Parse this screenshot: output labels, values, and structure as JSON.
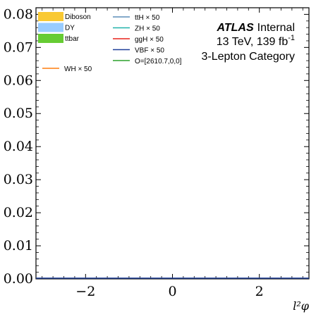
{
  "chart_data": {
    "type": "line",
    "xlabel": "l²φ",
    "ylabel": "",
    "xlim": [
      -3.1416,
      3.1416
    ],
    "ylim": [
      0.0,
      0.082
    ],
    "x_ticks": [
      -2,
      0,
      2
    ],
    "x_tick_labels": [
      "−2",
      "0",
      "2"
    ],
    "y_ticks": [
      0.0,
      0.01,
      0.02,
      0.03,
      0.04,
      0.05,
      0.06,
      0.07,
      0.08
    ],
    "y_tick_labels": [
      "0.00",
      "0.01",
      "0.02",
      "0.03",
      "0.04",
      "0.05",
      "0.06",
      "0.07",
      "0.08"
    ],
    "legend_position": "top-left",
    "stacked_backgrounds": [
      {
        "name": "Diboson",
        "color": "#f9c933"
      },
      {
        "name": "DY",
        "color": "#99ccff"
      },
      {
        "name": "ttbar",
        "color": "#66cc33"
      }
    ],
    "signal_series": [
      {
        "name": "WH × 50",
        "color": "#ff7f0e"
      },
      {
        "name": "ttH × 50",
        "color": "#5b8db8"
      },
      {
        "name": "ZH × 50",
        "color": "#20b2aa"
      },
      {
        "name": "ggH × 50",
        "color": "#e8221c"
      },
      {
        "name": "VBF × 50",
        "color": "#1f3f99"
      },
      {
        "name": "O=[2610.7,0,0]",
        "color": "#2ca02c"
      }
    ],
    "flat_line": {
      "x": [
        -3.1416,
        3.1416
      ],
      "y": [
        0.0,
        0.0
      ],
      "color": "#1f3f99"
    },
    "annotation": {
      "atlas": "ATLAS",
      "status": "Internal",
      "energy": "13 TeV, 139 fb",
      "energy_sup": "-1",
      "category": "3-Lepton Category"
    }
  }
}
